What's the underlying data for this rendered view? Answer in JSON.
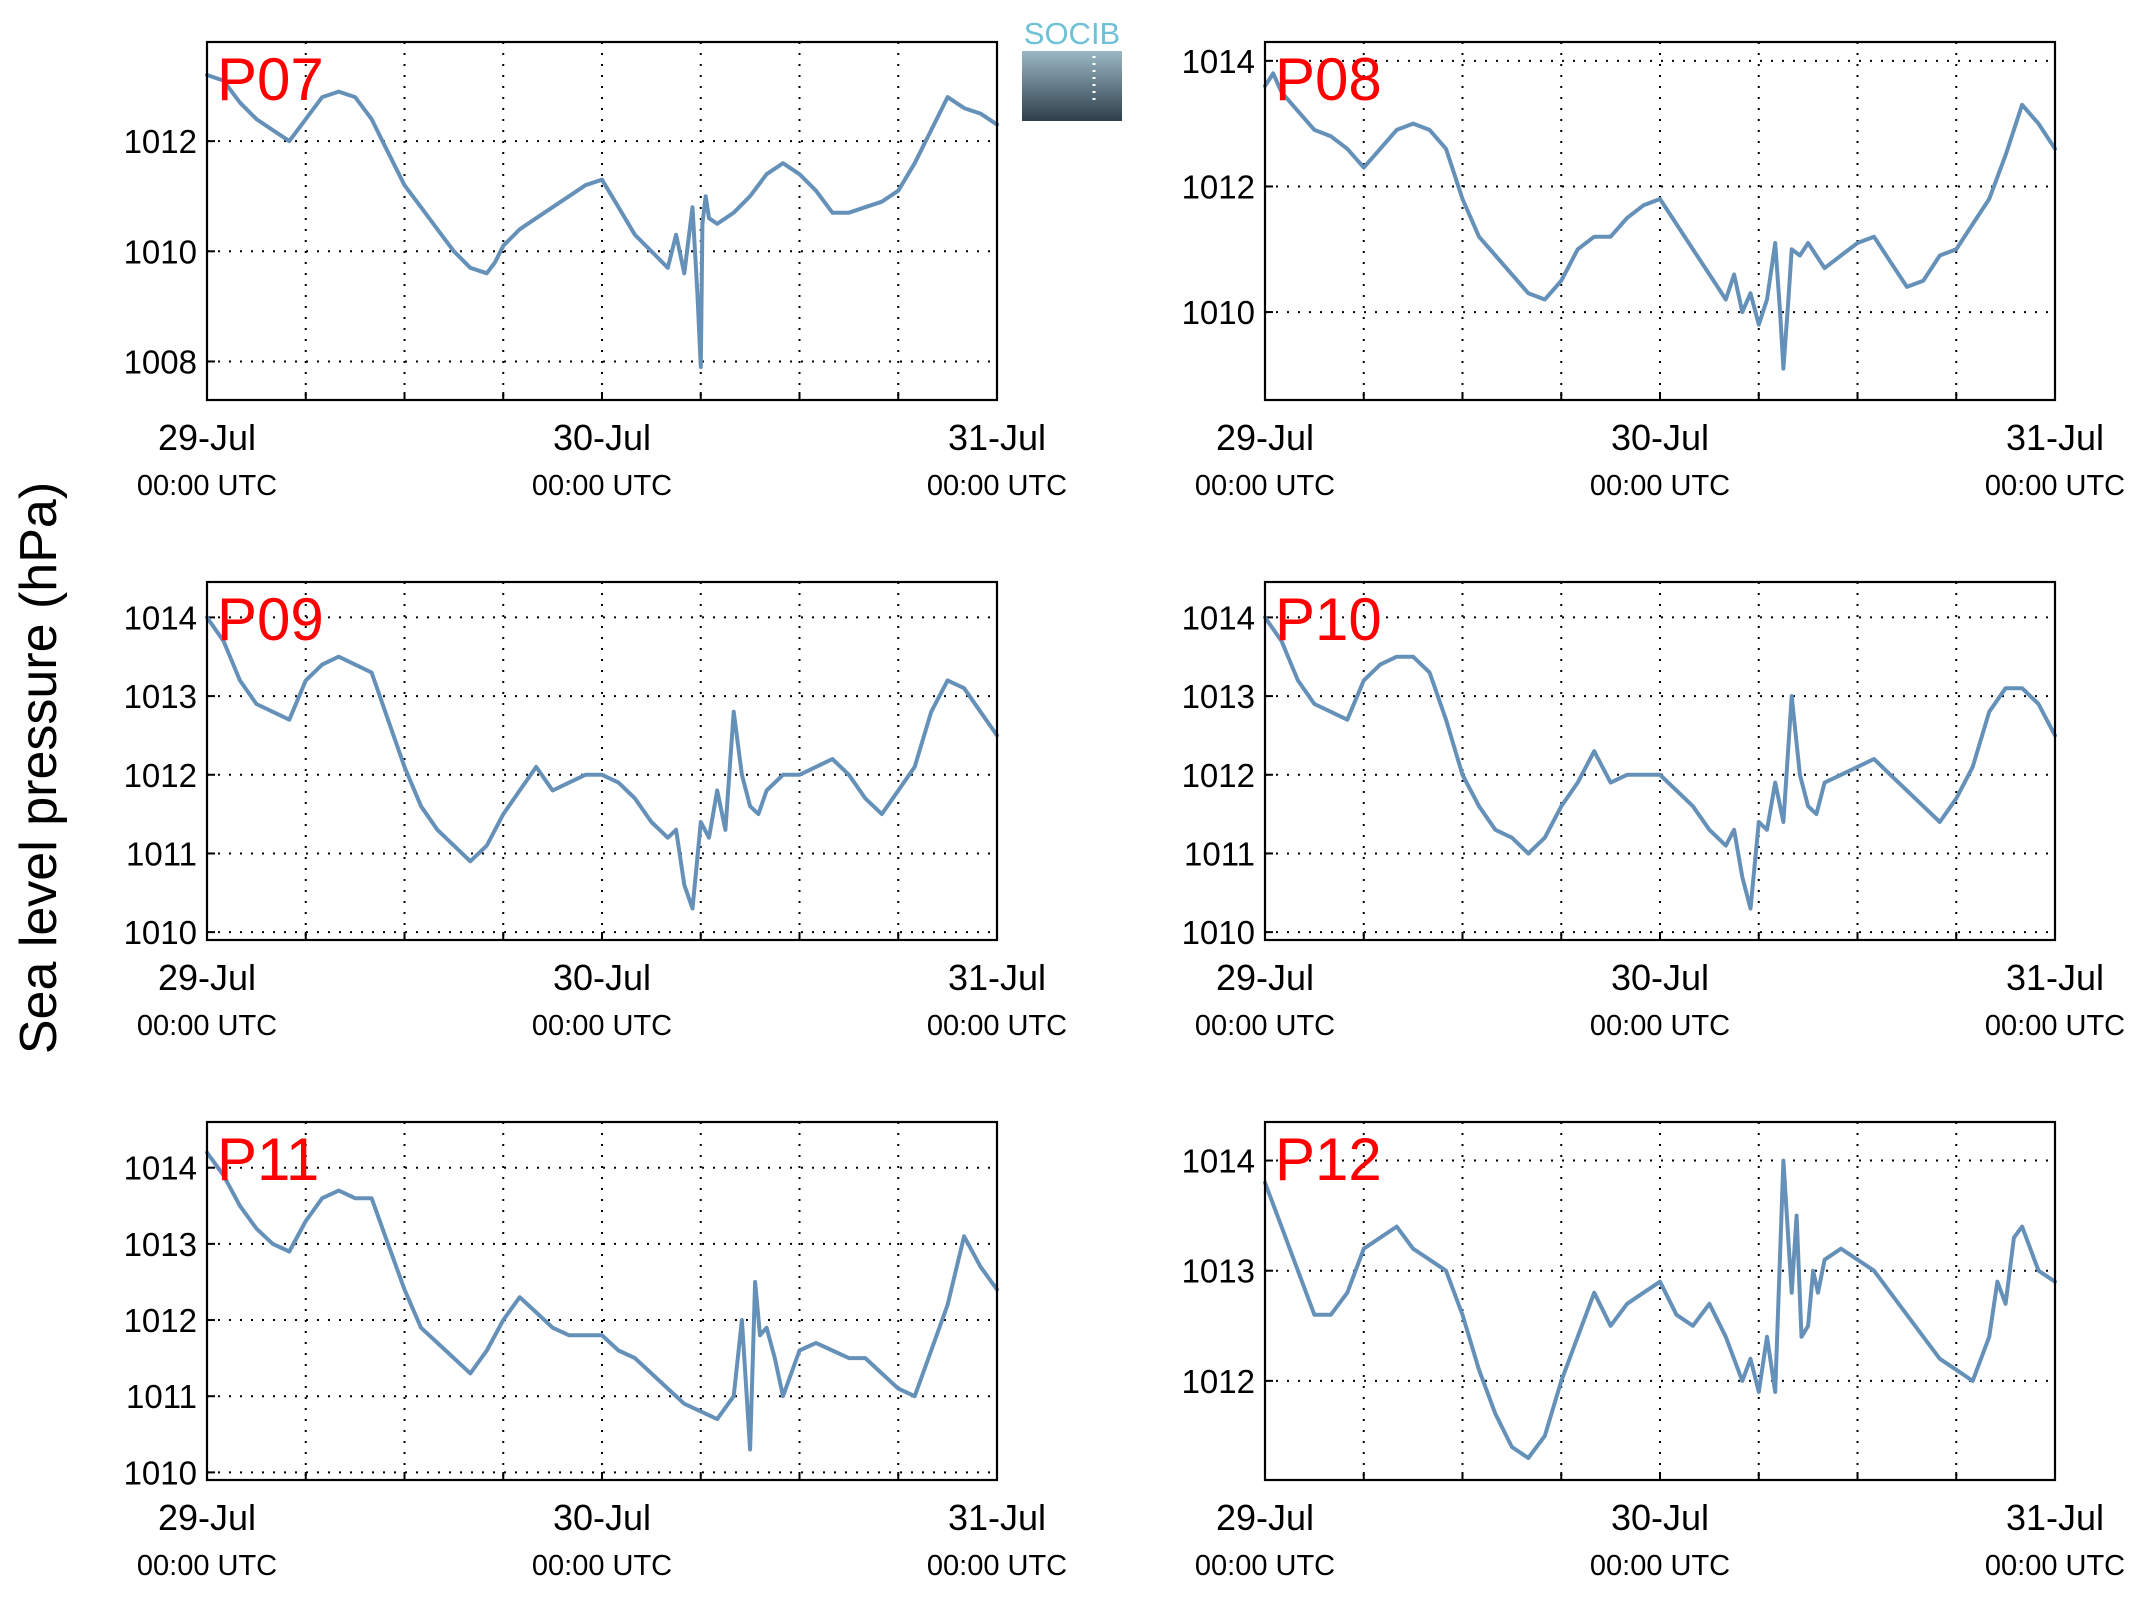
{
  "figure": {
    "ylabel": "Sea level pressure (hPa)",
    "logo_text": "SOCIB",
    "colors": {
      "series": "#6591b9",
      "panel_label": "#ff0000",
      "logo_top": "#6fc1d6",
      "logo_bottom": "#2e3e4a"
    }
  },
  "chart_data": [
    {
      "type": "line",
      "title": "P07",
      "xlabel": "",
      "ylabel": "Sea level pressure (hPa)",
      "xlim": [
        0,
        48
      ],
      "ylim": [
        1007.3,
        1013.8
      ],
      "yticks": [
        1008,
        1010,
        1012
      ],
      "x_ticks": [
        {
          "x": 0,
          "date": "29-Jul",
          "time": "00:00 UTC"
        },
        {
          "x": 24,
          "date": "30-Jul",
          "time": "00:00 UTC"
        },
        {
          "x": 48,
          "date": "31-Jul",
          "time": "00:00 UTC"
        }
      ],
      "x_grid": [
        6,
        12,
        18,
        24,
        30,
        36,
        42
      ],
      "grid": true,
      "series": [
        {
          "x": [
            0,
            1,
            2,
            3,
            4,
            5,
            6,
            7,
            8,
            9,
            10,
            11,
            12,
            13,
            14,
            15,
            16,
            17,
            17.5,
            18,
            19,
            20,
            21,
            22,
            23,
            24,
            25,
            26,
            27,
            28,
            28.5,
            29,
            29.5,
            29.8,
            30,
            30.1,
            30.3,
            30.5,
            31,
            32,
            33,
            34,
            35,
            36,
            37,
            38,
            39,
            40,
            41,
            42,
            43,
            44,
            45,
            46,
            47,
            48
          ],
          "y": [
            1013.2,
            1013.1,
            1012.7,
            1012.4,
            1012.2,
            1012.0,
            1012.4,
            1012.8,
            1012.9,
            1012.8,
            1012.4,
            1011.8,
            1011.2,
            1010.8,
            1010.4,
            1010.0,
            1009.7,
            1009.6,
            1009.8,
            1010.1,
            1010.4,
            1010.6,
            1010.8,
            1011.0,
            1011.2,
            1011.3,
            1010.8,
            1010.3,
            1010.0,
            1009.7,
            1010.3,
            1009.6,
            1010.8,
            1009.2,
            1007.9,
            1010.5,
            1011.0,
            1010.6,
            1010.5,
            1010.7,
            1011.0,
            1011.4,
            1011.6,
            1011.4,
            1011.1,
            1010.7,
            1010.7,
            1010.8,
            1010.9,
            1011.1,
            1011.6,
            1012.2,
            1012.8,
            1012.6,
            1012.5,
            1012.3
          ]
        }
      ]
    },
    {
      "type": "line",
      "title": "P08",
      "xlabel": "",
      "ylabel": "Sea level pressure (hPa)",
      "xlim": [
        0,
        48
      ],
      "ylim": [
        1008.6,
        1014.3
      ],
      "yticks": [
        1010,
        1012,
        1014
      ],
      "x_ticks": [
        {
          "x": 0,
          "date": "29-Jul",
          "time": "00:00 UTC"
        },
        {
          "x": 24,
          "date": "30-Jul",
          "time": "00:00 UTC"
        },
        {
          "x": 48,
          "date": "31-Jul",
          "time": "00:00 UTC"
        }
      ],
      "x_grid": [
        6,
        12,
        18,
        24,
        30,
        36,
        42
      ],
      "grid": true,
      "series": [
        {
          "x": [
            0,
            0.5,
            1,
            2,
            3,
            4,
            5,
            6,
            7,
            8,
            9,
            10,
            11,
            12,
            13,
            14,
            15,
            16,
            17,
            18,
            19,
            20,
            21,
            22,
            23,
            24,
            25,
            26,
            27,
            28,
            28.5,
            29,
            29.5,
            30,
            30.5,
            31,
            31.3,
            31.5,
            31.8,
            32,
            32.5,
            33,
            34,
            35,
            36,
            37,
            38,
            39,
            40,
            41,
            42,
            43,
            44,
            45,
            46,
            47,
            48
          ],
          "y": [
            1013.6,
            1013.8,
            1013.5,
            1013.2,
            1012.9,
            1012.8,
            1012.6,
            1012.3,
            1012.6,
            1012.9,
            1013.0,
            1012.9,
            1012.6,
            1011.8,
            1011.2,
            1010.9,
            1010.6,
            1010.3,
            1010.2,
            1010.5,
            1011.0,
            1011.2,
            1011.2,
            1011.5,
            1011.7,
            1011.8,
            1011.4,
            1011.0,
            1010.6,
            1010.2,
            1010.6,
            1010.0,
            1010.3,
            1009.8,
            1010.2,
            1011.1,
            1010.0,
            1009.1,
            1010.2,
            1011.0,
            1010.9,
            1011.1,
            1010.7,
            1010.9,
            1011.1,
            1011.2,
            1010.8,
            1010.4,
            1010.5,
            1010.9,
            1011.0,
            1011.4,
            1011.8,
            1012.5,
            1013.3,
            1013.0,
            1012.6
          ]
        }
      ]
    },
    {
      "type": "line",
      "title": "P09",
      "xlabel": "",
      "ylabel": "Sea level pressure (hPa)",
      "xlim": [
        0,
        48
      ],
      "ylim": [
        1009.9,
        1014.45
      ],
      "yticks": [
        1010,
        1011,
        1012,
        1013,
        1014
      ],
      "x_ticks": [
        {
          "x": 0,
          "date": "29-Jul",
          "time": "00:00 UTC"
        },
        {
          "x": 24,
          "date": "30-Jul",
          "time": "00:00 UTC"
        },
        {
          "x": 48,
          "date": "31-Jul",
          "time": "00:00 UTC"
        }
      ],
      "x_grid": [
        6,
        12,
        18,
        24,
        30,
        36,
        42
      ],
      "grid": true,
      "series": [
        {
          "x": [
            0,
            1,
            2,
            3,
            4,
            5,
            6,
            7,
            8,
            9,
            10,
            11,
            12,
            13,
            14,
            15,
            16,
            17,
            18,
            19,
            20,
            21,
            22,
            23,
            24,
            25,
            26,
            27,
            28,
            28.5,
            29,
            29.5,
            30,
            30.5,
            31,
            31.5,
            32,
            32.5,
            33,
            33.5,
            34,
            35,
            36,
            37,
            38,
            39,
            40,
            41,
            42,
            43,
            44,
            45,
            46,
            47,
            48
          ],
          "y": [
            1014.0,
            1013.7,
            1013.2,
            1012.9,
            1012.8,
            1012.7,
            1013.2,
            1013.4,
            1013.5,
            1013.4,
            1013.3,
            1012.7,
            1012.1,
            1011.6,
            1011.3,
            1011.1,
            1010.9,
            1011.1,
            1011.5,
            1011.8,
            1012.1,
            1011.8,
            1011.9,
            1012.0,
            1012.0,
            1011.9,
            1011.7,
            1011.4,
            1011.2,
            1011.3,
            1010.6,
            1010.3,
            1011.4,
            1011.2,
            1011.8,
            1011.3,
            1012.8,
            1012.0,
            1011.6,
            1011.5,
            1011.8,
            1012.0,
            1012.0,
            1012.1,
            1012.2,
            1012.0,
            1011.7,
            1011.5,
            1011.8,
            1012.1,
            1012.8,
            1013.2,
            1013.1,
            1012.8,
            1012.5
          ]
        }
      ]
    },
    {
      "type": "line",
      "title": "P10",
      "xlabel": "",
      "ylabel": "Sea level pressure (hPa)",
      "xlim": [
        0,
        48
      ],
      "ylim": [
        1009.9,
        1014.45
      ],
      "yticks": [
        1010,
        1011,
        1012,
        1013,
        1014
      ],
      "x_ticks": [
        {
          "x": 0,
          "date": "29-Jul",
          "time": "00:00 UTC"
        },
        {
          "x": 24,
          "date": "30-Jul",
          "time": "00:00 UTC"
        },
        {
          "x": 48,
          "date": "31-Jul",
          "time": "00:00 UTC"
        }
      ],
      "x_grid": [
        6,
        12,
        18,
        24,
        30,
        36,
        42
      ],
      "grid": true,
      "series": [
        {
          "x": [
            0,
            1,
            2,
            3,
            4,
            5,
            6,
            7,
            8,
            9,
            10,
            11,
            12,
            13,
            14,
            15,
            16,
            17,
            18,
            19,
            20,
            21,
            22,
            23,
            24,
            25,
            26,
            27,
            28,
            28.5,
            29,
            29.5,
            30,
            30.5,
            31,
            31.5,
            32,
            32.5,
            33,
            33.5,
            34,
            35,
            36,
            37,
            38,
            39,
            40,
            41,
            42,
            43,
            44,
            45,
            46,
            47,
            48
          ],
          "y": [
            1014.0,
            1013.7,
            1013.2,
            1012.9,
            1012.8,
            1012.7,
            1013.2,
            1013.4,
            1013.5,
            1013.5,
            1013.3,
            1012.7,
            1012.0,
            1011.6,
            1011.3,
            1011.2,
            1011.0,
            1011.2,
            1011.6,
            1011.9,
            1012.3,
            1011.9,
            1012.0,
            1012.0,
            1012.0,
            1011.8,
            1011.6,
            1011.3,
            1011.1,
            1011.3,
            1010.7,
            1010.3,
            1011.4,
            1011.3,
            1011.9,
            1011.4,
            1013.0,
            1012.0,
            1011.6,
            1011.5,
            1011.9,
            1012.0,
            1012.1,
            1012.2,
            1012.0,
            1011.8,
            1011.6,
            1011.4,
            1011.7,
            1012.1,
            1012.8,
            1013.1,
            1013.1,
            1012.9,
            1012.5
          ]
        }
      ]
    },
    {
      "type": "line",
      "title": "P11",
      "xlabel": "",
      "ylabel": "Sea level pressure (hPa)",
      "xlim": [
        0,
        48
      ],
      "ylim": [
        1009.9,
        1014.6
      ],
      "yticks": [
        1010,
        1011,
        1012,
        1013,
        1014
      ],
      "x_ticks": [
        {
          "x": 0,
          "date": "29-Jul",
          "time": "00:00 UTC"
        },
        {
          "x": 24,
          "date": "30-Jul",
          "time": "00:00 UTC"
        },
        {
          "x": 48,
          "date": "31-Jul",
          "time": "00:00 UTC"
        }
      ],
      "x_grid": [
        6,
        12,
        18,
        24,
        30,
        36,
        42
      ],
      "grid": true,
      "series": [
        {
          "x": [
            0,
            1,
            2,
            3,
            4,
            5,
            6,
            7,
            8,
            9,
            10,
            11,
            12,
            13,
            14,
            15,
            16,
            17,
            18,
            19,
            20,
            21,
            22,
            23,
            24,
            25,
            26,
            27,
            28,
            29,
            30,
            31,
            32,
            32.5,
            33,
            33.3,
            33.6,
            34,
            34.5,
            35,
            36,
            37,
            38,
            39,
            40,
            41,
            42,
            43,
            44,
            45,
            46,
            47,
            48
          ],
          "y": [
            1014.2,
            1013.9,
            1013.5,
            1013.2,
            1013.0,
            1012.9,
            1013.3,
            1013.6,
            1013.7,
            1013.6,
            1013.6,
            1013.0,
            1012.4,
            1011.9,
            1011.7,
            1011.5,
            1011.3,
            1011.6,
            1012.0,
            1012.3,
            1012.1,
            1011.9,
            1011.8,
            1011.8,
            1011.8,
            1011.6,
            1011.5,
            1011.3,
            1011.1,
            1010.9,
            1010.8,
            1010.7,
            1011.0,
            1012.0,
            1010.3,
            1012.5,
            1011.8,
            1011.9,
            1011.5,
            1011.0,
            1011.6,
            1011.7,
            1011.6,
            1011.5,
            1011.5,
            1011.3,
            1011.1,
            1011.0,
            1011.6,
            1012.2,
            1013.1,
            1012.7,
            1012.4
          ]
        }
      ]
    },
    {
      "type": "line",
      "title": "P12",
      "xlabel": "",
      "ylabel": "Sea level pressure (hPa)",
      "xlim": [
        0,
        48
      ],
      "ylim": [
        1011.1,
        1014.35
      ],
      "yticks": [
        1012,
        1013,
        1014
      ],
      "x_ticks": [
        {
          "x": 0,
          "date": "29-Jul",
          "time": "00:00 UTC"
        },
        {
          "x": 24,
          "date": "30-Jul",
          "time": "00:00 UTC"
        },
        {
          "x": 48,
          "date": "31-Jul",
          "time": "00:00 UTC"
        }
      ],
      "x_grid": [
        6,
        12,
        18,
        24,
        30,
        36,
        42
      ],
      "grid": true,
      "series": [
        {
          "x": [
            0,
            1,
            2,
            3,
            4,
            5,
            6,
            7,
            8,
            9,
            10,
            11,
            12,
            13,
            14,
            15,
            16,
            17,
            18,
            19,
            20,
            21,
            22,
            23,
            24,
            25,
            26,
            27,
            28,
            29,
            29.5,
            30,
            30.5,
            31,
            31.5,
            32,
            32.3,
            32.6,
            33,
            33.3,
            33.6,
            34,
            35,
            36,
            37,
            38,
            39,
            40,
            41,
            42,
            43,
            44,
            44.5,
            45,
            45.5,
            46,
            47,
            48
          ],
          "y": [
            1013.8,
            1013.4,
            1013.0,
            1012.6,
            1012.6,
            1012.8,
            1013.2,
            1013.3,
            1013.4,
            1013.2,
            1013.1,
            1013.0,
            1012.6,
            1012.1,
            1011.7,
            1011.4,
            1011.3,
            1011.5,
            1012.0,
            1012.4,
            1012.8,
            1012.5,
            1012.7,
            1012.8,
            1012.9,
            1012.6,
            1012.5,
            1012.7,
            1012.4,
            1012.0,
            1012.2,
            1011.9,
            1012.4,
            1011.9,
            1014.0,
            1012.8,
            1013.5,
            1012.4,
            1012.5,
            1013.0,
            1012.8,
            1013.1,
            1013.2,
            1013.1,
            1013.0,
            1012.8,
            1012.6,
            1012.4,
            1012.2,
            1012.1,
            1012.0,
            1012.4,
            1012.9,
            1012.7,
            1013.3,
            1013.4,
            1013.0,
            1012.9
          ]
        }
      ]
    }
  ]
}
